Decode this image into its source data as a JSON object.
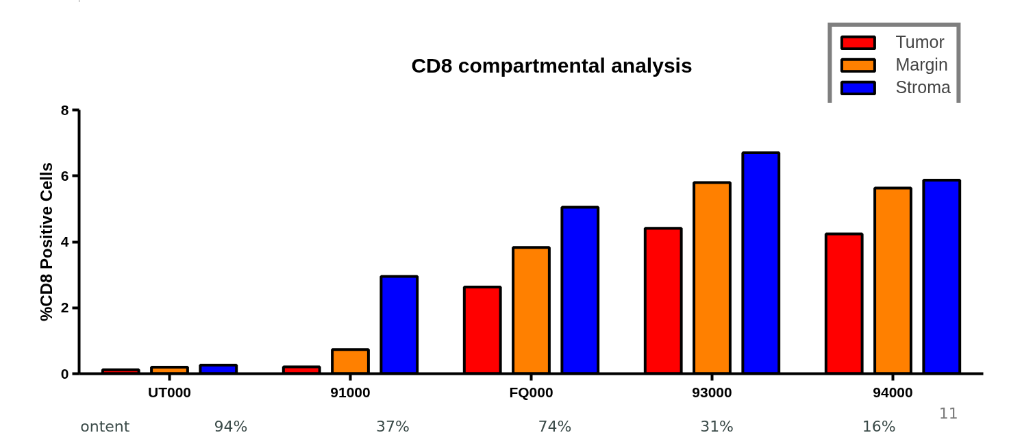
{
  "chart_data": {
    "type": "bar",
    "title": "CD8 compartmental analysis",
    "ylabel": "%CD8 Positive Cells",
    "categories": [
      "UT000",
      "91000",
      "FQ000",
      "93000",
      "94000"
    ],
    "series": [
      {
        "name": "Tumor",
        "color": "#ff0000",
        "values": [
          0.12,
          0.21,
          2.63,
          4.41,
          4.24
        ]
      },
      {
        "name": "Margin",
        "color": "#ff8000",
        "values": [
          0.2,
          0.73,
          3.83,
          5.8,
          5.63
        ]
      },
      {
        "name": "Stroma",
        "color": "#0000ff",
        "values": [
          0.26,
          2.95,
          5.05,
          6.7,
          5.87
        ]
      }
    ],
    "ylim": [
      0,
      8
    ],
    "yticks": [
      0,
      2,
      4,
      6,
      8
    ],
    "grid": false,
    "legend": "top right",
    "annotations": [
      "ontent",
      "94%",
      "37%",
      "74%",
      "31%",
      "16%",
      "11"
    ]
  }
}
